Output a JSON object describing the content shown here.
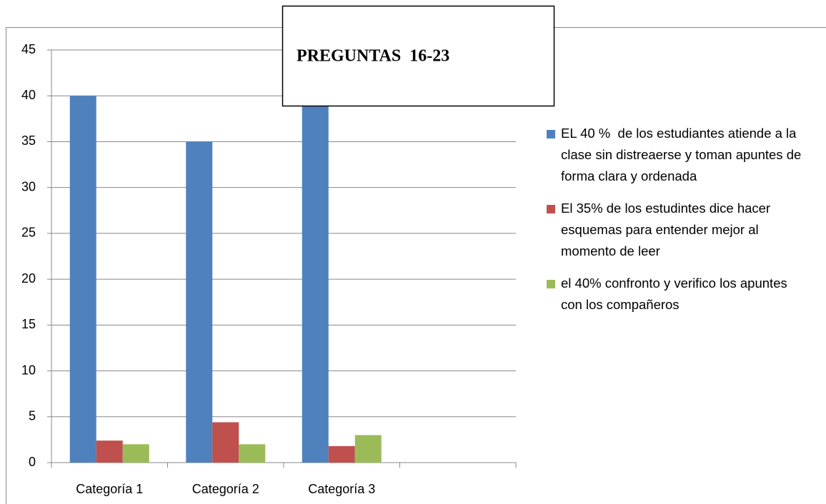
{
  "chart_data": {
    "type": "bar",
    "title": "PREGUNTAS  16-23",
    "categories": [
      "Categoría 1",
      "Categoría 2",
      "Categoría 3",
      null
    ],
    "series": [
      {
        "name": "EL 40 %  de los estudiantes atiende a la clase sin distreaerse y toman apuntes de forma clara y ordenada",
        "color": "#4f81bd",
        "values": [
          40,
          35,
          40,
          null
        ]
      },
      {
        "name": "El 35% de los estudintes dice hacer esquemas para entender mejor al momento de leer",
        "color": "#c0504d",
        "values": [
          2.4,
          4.4,
          1.8,
          null
        ]
      },
      {
        "name": "el 40% confronto y verifico los apuntes con los compañeros",
        "color": "#9bbb59",
        "values": [
          2,
          2,
          3,
          null
        ]
      }
    ],
    "ylim": [
      0,
      45
    ],
    "yticks": [
      0,
      5,
      10,
      15,
      20,
      25,
      30,
      35,
      40,
      45
    ],
    "grid": true,
    "legend": "right"
  }
}
